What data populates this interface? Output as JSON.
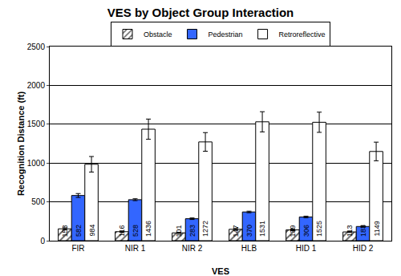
{
  "chart_data": {
    "type": "bar",
    "title": "VES by Object Group Interaction",
    "xlabel": "VES",
    "ylabel": "Recognition Distance (ft)",
    "categories": [
      "FIR",
      "NIR 1",
      "NIR 2",
      "HLB",
      "HID 1",
      "HID 2"
    ],
    "series": [
      {
        "name": "Obstacle",
        "color": "#ffffff",
        "marker": "hatch",
        "values": [
          153,
          116,
          101,
          147,
          139,
          113
        ],
        "errors": [
          12,
          8,
          8,
          10,
          10,
          8
        ]
      },
      {
        "name": "Pedestrian",
        "color": "#3366ff",
        "values": [
          582,
          528,
          283,
          370,
          306,
          183
        ],
        "errors": [
          25,
          12,
          10,
          10,
          10,
          10
        ]
      },
      {
        "name": "Retroreflective",
        "color": "#ffffff",
        "values": [
          984,
          1436,
          1272,
          1531,
          1525,
          1149
        ],
        "errors": [
          100,
          130,
          120,
          130,
          130,
          120
        ]
      }
    ],
    "ylim": [
      0,
      2500
    ],
    "yticks": [
      0,
      500,
      1000,
      1500,
      2000,
      2500
    ],
    "grid": true,
    "legend": "top",
    "data_labels": true
  }
}
